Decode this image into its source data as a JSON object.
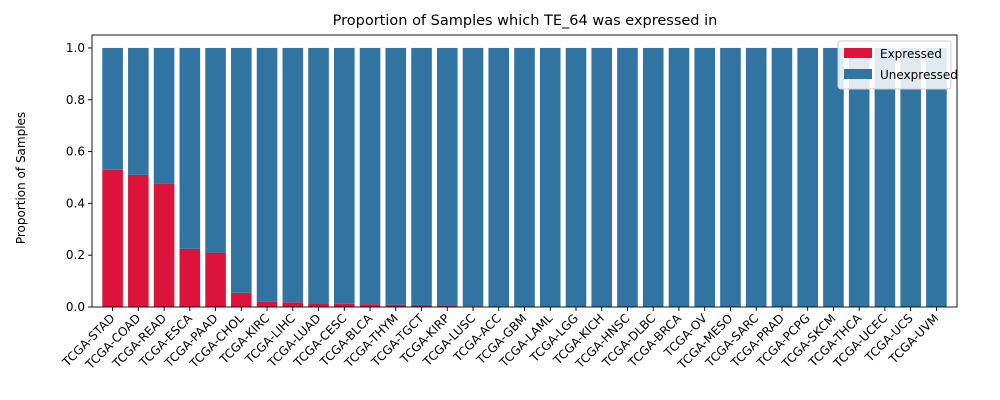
{
  "chart_data": {
    "type": "bar",
    "stacked": true,
    "title": "Proportion of Samples which TE_64 was expressed in",
    "xlabel": "",
    "ylabel": "Proportion of Samples",
    "ylim": [
      0,
      1.05
    ],
    "yticks": [
      "0.0",
      "0.2",
      "0.4",
      "0.6",
      "0.8",
      "1.0"
    ],
    "grid": false,
    "legend_position": "top-right",
    "categories": [
      "TCGA-STAD",
      "TCGA-COAD",
      "TCGA-READ",
      "TCGA-ESCA",
      "TCGA-PAAD",
      "TCGA-CHOL",
      "TCGA-KIRC",
      "TCGA-LIHC",
      "TCGA-LUAD",
      "TCGA-CESC",
      "TCGA-BLCA",
      "TCGA-THYM",
      "TCGA-TGCT",
      "TCGA-KIRP",
      "TCGA-LUSC",
      "TCGA-ACC",
      "TCGA-GBM",
      "TCGA-LAML",
      "TCGA-LGG",
      "TCGA-KICH",
      "TCGA-HNSC",
      "TCGA-DLBC",
      "TCGA-BRCA",
      "TCGA-OV",
      "TCGA-MESO",
      "TCGA-SARC",
      "TCGA-PRAD",
      "TCGA-PCPG",
      "TCGA-SKCM",
      "TCGA-THCA",
      "TCGA-UCEC",
      "TCGA-UCS",
      "TCGA-UVM"
    ],
    "series": [
      {
        "name": "Expressed",
        "color": "#dc143c",
        "values": [
          0.53,
          0.51,
          0.475,
          0.225,
          0.21,
          0.055,
          0.022,
          0.018,
          0.015,
          0.012,
          0.011,
          0.009,
          0.008,
          0.004,
          0.003,
          0,
          0,
          0,
          0,
          0,
          0,
          0,
          0,
          0,
          0,
          0,
          0,
          0,
          0,
          0,
          0,
          0,
          0
        ]
      },
      {
        "name": "Unexpressed",
        "color": "#3274a1",
        "values": [
          0.47,
          0.49,
          0.525,
          0.775,
          0.79,
          0.945,
          0.978,
          0.982,
          0.985,
          0.988,
          0.989,
          0.991,
          0.992,
          0.996,
          0.997,
          1,
          1,
          1,
          1,
          1,
          1,
          1,
          1,
          1,
          1,
          1,
          1,
          1,
          1,
          1,
          1,
          1,
          1
        ]
      }
    ]
  }
}
